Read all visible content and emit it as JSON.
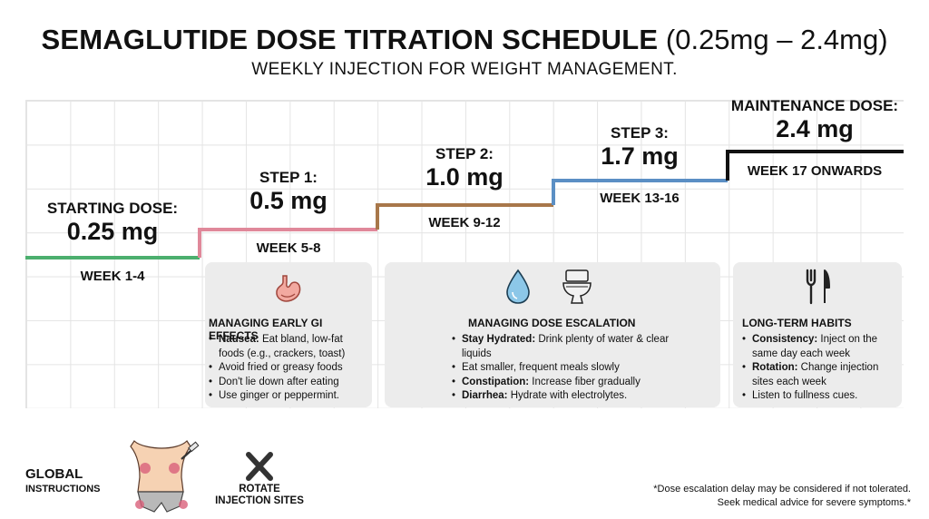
{
  "header": {
    "title_bold": "SEMAGLUTIDE DOSE TITRATION SCHEDULE",
    "title_range": "(0.25mg – 2.4mg)",
    "subtitle": "WEEKLY INJECTION FOR WEIGHT MANAGEMENT."
  },
  "steps": [
    {
      "caption": "STARTING DOSE:",
      "dose": "0.25 mg",
      "weeks": "WEEK 1-4",
      "color": "#4caf6e"
    },
    {
      "caption": "STEP 1:",
      "dose": "0.5 mg",
      "weeks": "WEEK 5-8",
      "color": "#e0889a"
    },
    {
      "caption": "STEP 2:",
      "dose": "1.0 mg",
      "weeks": "WEEK 9-12",
      "color": "#a8774a"
    },
    {
      "caption": "STEP 3:",
      "dose": "1.7 mg",
      "weeks": "WEEK 13-16",
      "color": "#5b8fc4"
    },
    {
      "caption": "MAINTENANCE DOSE:",
      "dose": "2.4 mg",
      "weeks": "WEEK 17 ONWARDS",
      "color": "#111111"
    }
  ],
  "cards": [
    {
      "title": "MANAGING EARLY GI EFFECTS",
      "icons": [
        "stomach-icon"
      ],
      "items": [
        {
          "strong": "Nausea:",
          "text": " Eat bland, low-fat foods (e.g., crackers, toast)"
        },
        {
          "strong": "",
          "text": "Avoid fried or greasy foods"
        },
        {
          "strong": "",
          "text": "Don't lie down after eating"
        },
        {
          "strong": "",
          "text": "Use ginger or peppermint."
        }
      ]
    },
    {
      "title": "MANAGING DOSE ESCALATION",
      "icons": [
        "water-drop-icon",
        "toilet-icon"
      ],
      "items": [
        {
          "strong": "Stay Hydrated:",
          "text": " Drink plenty of water & clear liquids"
        },
        {
          "strong": "",
          "text": "Eat smaller, frequent meals slowly"
        },
        {
          "strong": "Constipation:",
          "text": " Increase fiber gradually"
        },
        {
          "strong": "Diarrhea:",
          "text": " Hydrate with electrolytes."
        }
      ]
    },
    {
      "title": "LONG-TERM HABITS",
      "icons": [
        "fork-knife-icon"
      ],
      "items": [
        {
          "strong": "Consistency:",
          "text": " Inject on the same day each week"
        },
        {
          "strong": "Rotation:",
          "text": " Change injection sites each week"
        },
        {
          "strong": "",
          "text": "Listen to fullness cues."
        }
      ]
    }
  ],
  "footer": {
    "global_title": "GLOBAL",
    "global_sub": "INSTRUCTIONS",
    "rotate_line1": "ROTATE",
    "rotate_line2": "INJECTION SITES",
    "note_line1": "*Dose escalation delay may be considered if not tolerated.",
    "note_line2": "Seek medical advice for severe symptoms.*"
  }
}
